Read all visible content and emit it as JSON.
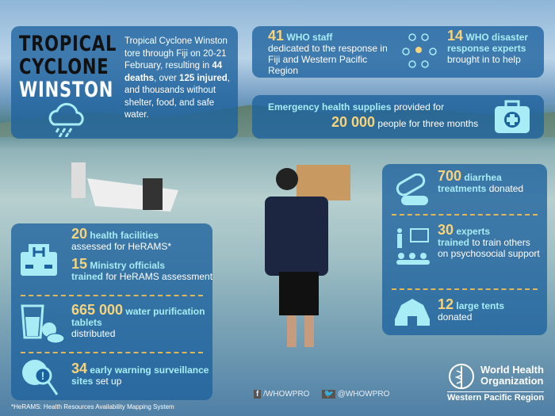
{
  "title": {
    "line1": "TROPICAL",
    "line2": "CYCLONE",
    "line3": "WINSTON"
  },
  "intro": {
    "a": "Tropical Cyclone Winston tore through Fiji on 20-21 February, resulting in ",
    "deaths": "44 deaths",
    "b": ", over ",
    "injured": "125 injured",
    "c": ", and thousands without shelter, food, and safe water."
  },
  "staff": {
    "n": "41",
    "label": "WHO staff",
    "desc": "dedicated to the response in Fiji and Western Pacific Region"
  },
  "experts": {
    "n": "14",
    "label": "WHO disaster response experts",
    "desc": "brought in to help"
  },
  "supplies": {
    "label": "Emergency health supplies",
    "a": "provided for",
    "n": "20 000",
    "b": "people for three months"
  },
  "facilities": {
    "n": "20",
    "label": "health facilities",
    "desc": "assessed for HeRAMS*"
  },
  "officials": {
    "n": "15",
    "label": "Ministry officials",
    "trained": "trained",
    "desc": "for HeRAMS assessment"
  },
  "tablets": {
    "n": "665 000",
    "label": "water purification tablets",
    "desc": "distributed"
  },
  "sites": {
    "n": "34",
    "label": "early warning surveillance sites",
    "desc": "set up"
  },
  "diarrhea": {
    "n": "700",
    "label": "diarrhea treatments",
    "desc": "donated"
  },
  "trainers": {
    "n": "30",
    "label": "experts",
    "trained": "trained",
    "desc": "to train others on psychosocial support"
  },
  "tents": {
    "n": "12",
    "label": "large tents",
    "desc": "donated"
  },
  "footnote": "*HeRAMS: Health Resources Availability Mapping System",
  "social": {
    "facebook": "/WHOWPRO",
    "twitter": "@WHOWPRO"
  },
  "logo": {
    "line1": "World Health",
    "line2": "Organization",
    "line3": "Western Pacific Region"
  },
  "colors": {
    "panel": "#1c629e",
    "yellow": "#f7d47c",
    "cyan": "#a8ecf5"
  }
}
